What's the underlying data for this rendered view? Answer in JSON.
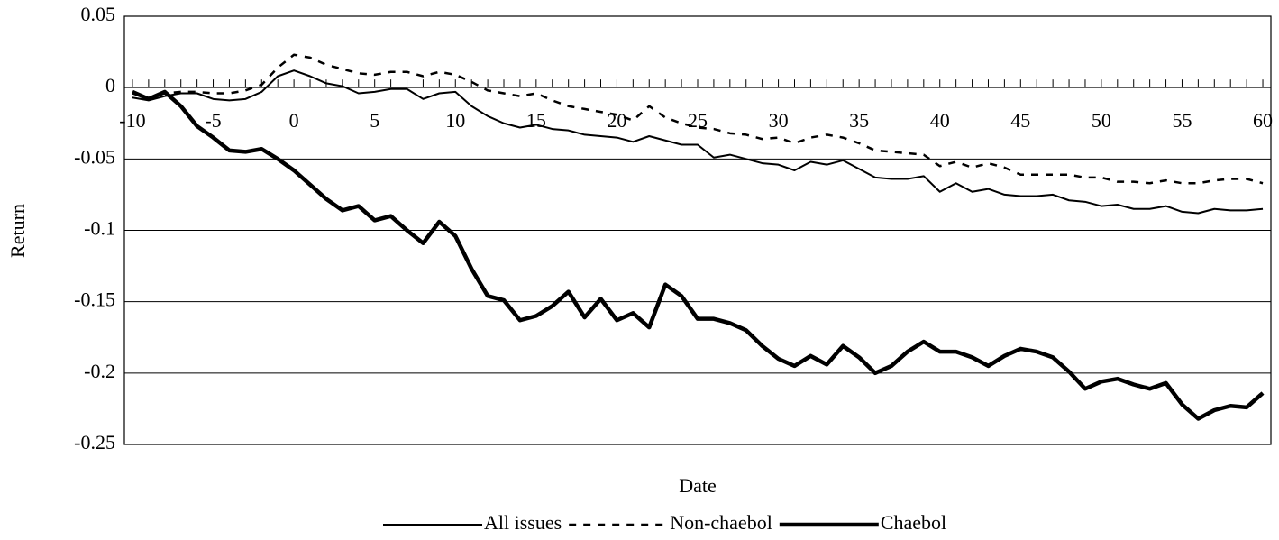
{
  "chart_data": {
    "type": "line",
    "y_label": "Return",
    "x_label": "Date",
    "x": [
      -10,
      -9,
      -8,
      -7,
      -6,
      -5,
      -4,
      -3,
      -2,
      -1,
      0,
      1,
      2,
      3,
      4,
      5,
      6,
      7,
      8,
      9,
      10,
      11,
      12,
      13,
      14,
      15,
      16,
      17,
      18,
      19,
      20,
      21,
      22,
      23,
      24,
      25,
      26,
      27,
      28,
      29,
      30,
      31,
      32,
      33,
      34,
      35,
      36,
      37,
      38,
      39,
      40,
      41,
      42,
      43,
      44,
      45,
      46,
      47,
      48,
      49,
      50,
      51,
      52,
      53,
      54,
      55,
      56,
      57,
      58,
      59,
      60
    ],
    "series": [
      {
        "name": "All issues",
        "color": "#000000",
        "line_style": "solid",
        "line_width": 2,
        "values": [
          -0.007,
          -0.009,
          -0.006,
          -0.004,
          -0.004,
          -0.008,
          -0.009,
          -0.008,
          -0.003,
          0.008,
          0.012,
          0.008,
          0.003,
          0.001,
          -0.004,
          -0.003,
          -0.001,
          -0.001,
          -0.008,
          -0.004,
          -0.003,
          -0.013,
          -0.02,
          -0.025,
          -0.028,
          -0.026,
          -0.029,
          -0.03,
          -0.033,
          -0.034,
          -0.035,
          -0.038,
          -0.034,
          -0.037,
          -0.04,
          -0.04,
          -0.049,
          -0.047,
          -0.05,
          -0.053,
          -0.054,
          -0.058,
          -0.052,
          -0.054,
          -0.051,
          -0.057,
          -0.063,
          -0.064,
          -0.064,
          -0.062,
          -0.073,
          -0.067,
          -0.073,
          -0.071,
          -0.075,
          -0.076,
          -0.076,
          -0.075,
          -0.079,
          -0.08,
          -0.083,
          -0.082,
          -0.085,
          -0.085,
          -0.083,
          -0.087,
          -0.088,
          -0.085,
          -0.086,
          -0.086,
          -0.085
        ]
      },
      {
        "name": "Non-chaebol",
        "color": "#000000",
        "line_style": "dashed",
        "line_width": 2.5,
        "values": [
          -0.004,
          -0.008,
          -0.004,
          -0.003,
          -0.003,
          -0.004,
          -0.004,
          -0.002,
          0.002,
          0.014,
          0.023,
          0.021,
          0.016,
          0.013,
          0.01,
          0.009,
          0.011,
          0.011,
          0.008,
          0.011,
          0.009,
          0.004,
          -0.002,
          -0.004,
          -0.006,
          -0.004,
          -0.009,
          -0.013,
          -0.015,
          -0.017,
          -0.019,
          -0.023,
          -0.013,
          -0.021,
          -0.025,
          -0.028,
          -0.029,
          -0.032,
          -0.033,
          -0.036,
          -0.035,
          -0.039,
          -0.035,
          -0.033,
          -0.035,
          -0.039,
          -0.044,
          -0.045,
          -0.046,
          -0.047,
          -0.055,
          -0.052,
          -0.056,
          -0.053,
          -0.056,
          -0.061,
          -0.061,
          -0.061,
          -0.061,
          -0.063,
          -0.063,
          -0.066,
          -0.066,
          -0.067,
          -0.065,
          -0.067,
          -0.067,
          -0.065,
          -0.064,
          -0.064,
          -0.067
        ]
      },
      {
        "name": "Chaebol",
        "color": "#000000",
        "line_style": "solid",
        "line_width": 4.5,
        "values": [
          -0.003,
          -0.008,
          -0.003,
          -0.013,
          -0.027,
          -0.035,
          -0.044,
          -0.045,
          -0.043,
          -0.05,
          -0.058,
          -0.068,
          -0.078,
          -0.086,
          -0.083,
          -0.093,
          -0.09,
          -0.1,
          -0.109,
          -0.094,
          -0.104,
          -0.127,
          -0.146,
          -0.149,
          -0.163,
          -0.16,
          -0.153,
          -0.143,
          -0.161,
          -0.148,
          -0.163,
          -0.158,
          -0.168,
          -0.138,
          -0.146,
          -0.162,
          -0.162,
          -0.165,
          -0.17,
          -0.181,
          -0.19,
          -0.195,
          -0.188,
          -0.194,
          -0.181,
          -0.189,
          -0.2,
          -0.195,
          -0.185,
          -0.178,
          -0.185,
          -0.185,
          -0.189,
          -0.195,
          -0.188,
          -0.183,
          -0.185,
          -0.189,
          -0.199,
          -0.211,
          -0.206,
          -0.204,
          -0.208,
          -0.211,
          -0.207,
          -0.222,
          -0.232,
          -0.226,
          -0.223,
          -0.224,
          -0.214
        ]
      }
    ],
    "xlim": [
      -10.5,
      60.5
    ],
    "xticks": [
      -10,
      -5,
      0,
      5,
      10,
      15,
      20,
      25,
      30,
      35,
      40,
      45,
      50,
      55,
      60
    ],
    "ylim": [
      -0.25,
      0.05
    ],
    "yticks": [
      0.05,
      0,
      -0.05,
      -0.1,
      -0.15,
      -0.2,
      -0.25
    ],
    "grid": true,
    "legend": "bottom"
  }
}
